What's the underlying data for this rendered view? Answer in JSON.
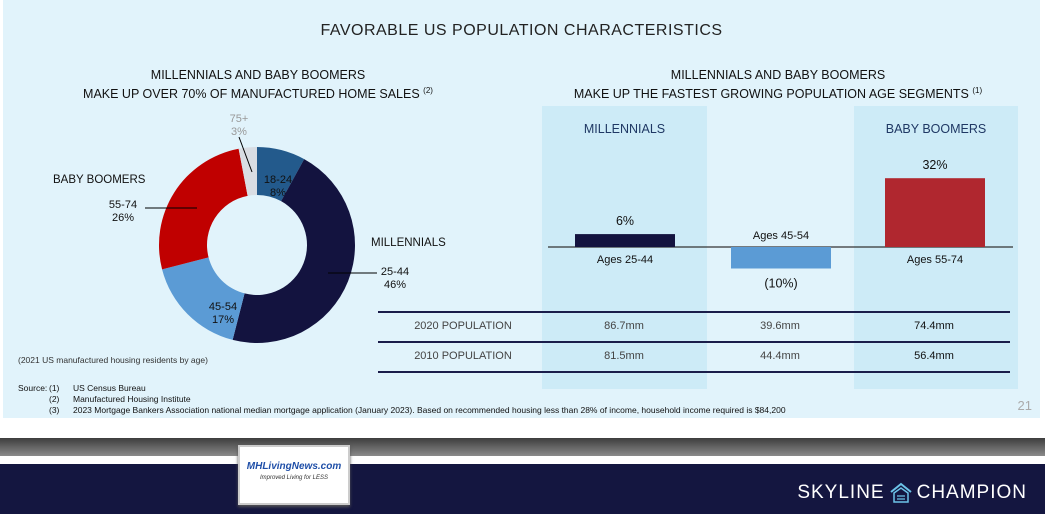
{
  "title": "FAVORABLE US POPULATION CHARACTERISTICS",
  "left": {
    "subtitle_line1": "MILLENNIALS AND BABY BOOMERS",
    "subtitle_line2": "MAKE UP OVER 70% OF MANUFACTURED HOME SALES",
    "subtitle_note": "(2)",
    "group_baby_boomers": "BABY BOOMERS",
    "group_millennials": "MILLENNIALS",
    "caption": "(2021 US manufactured housing residents by age)"
  },
  "right": {
    "subtitle_line1": "MILLENNIALS AND BABY BOOMERS",
    "subtitle_line2": "MAKE UP THE FASTEST GROWING POPULATION AGE SEGMENTS",
    "subtitle_note": "(1)",
    "col_millennials": "MILLENNIALS",
    "col_baby_boomers": "BABY BOOMERS",
    "table": {
      "rows": [
        {
          "label": "2020 POPULATION",
          "values": [
            "86.7mm",
            "39.6mm",
            "74.4mm"
          ]
        },
        {
          "label": "2010 POPULATION",
          "values": [
            "81.5mm",
            "44.4mm",
            "56.4mm"
          ]
        }
      ]
    }
  },
  "chart_data": [
    {
      "type": "pie",
      "variant": "donut",
      "start": "top",
      "direction": "clockwise",
      "slices": [
        {
          "label": "18-24",
          "value": 8,
          "value_label": "8%",
          "color": "#235a8c"
        },
        {
          "label": "25-44",
          "value": 46,
          "value_label": "46%",
          "color": "#13133f"
        },
        {
          "label": "45-54",
          "value": 17,
          "value_label": "17%",
          "color": "#5b9bd5"
        },
        {
          "label": "55-74",
          "value": 26,
          "value_label": "26%",
          "color": "#c00000"
        },
        {
          "label": "75+",
          "value": 3,
          "value_label": "3%",
          "color": "#d9dde3"
        }
      ]
    },
    {
      "type": "bar",
      "categories": [
        "Ages 25-44",
        "Ages 45-54",
        "Ages 55-74"
      ],
      "values": [
        6,
        -10,
        32
      ],
      "value_labels": [
        "6%",
        "(10%)",
        "32%"
      ],
      "colors": [
        "#13133f",
        "#5b9bd5",
        "#b0272f"
      ]
    }
  ],
  "sources": {
    "label": "Source:",
    "items": [
      {
        "num": "(1)",
        "text": "US Census Bureau"
      },
      {
        "num": "(2)",
        "text": "Manufactured Housing Institute"
      },
      {
        "num": "(3)",
        "text": "2023 Mortgage Bankers Association national median mortgage application (January 2023).  Based on recommended housing less than 28% of income, household income required is $84,200"
      }
    ]
  },
  "page_number": "21",
  "footer": {
    "brand_left": "SKYLINE",
    "brand_right": "CHAMPION",
    "watermark_text": "MHLivingNews.com",
    "watermark_tagline": "Improved Living for LESS"
  }
}
